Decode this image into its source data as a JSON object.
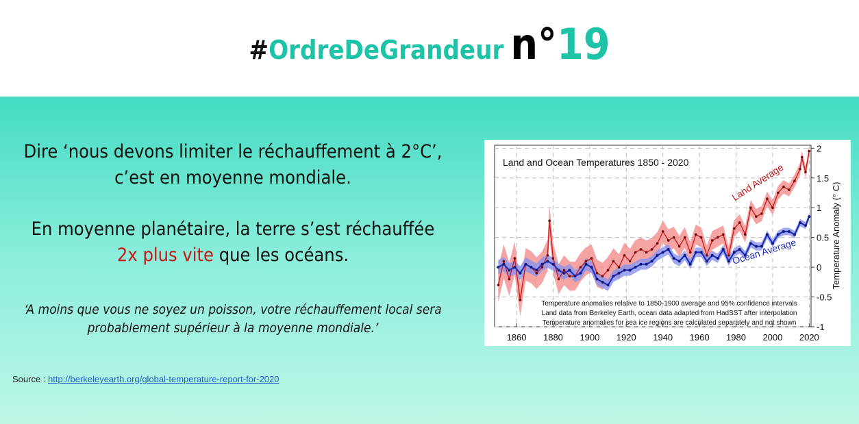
{
  "header": {
    "hash": "#",
    "tag": "OrdreDeGrandeur",
    "number_prefix": "n°",
    "number": "19"
  },
  "text": {
    "p1_line1": "Dire ‘nous devons limiter le réchauffement à 2°C’,",
    "p1_line2": "c’est en moyenne mondiale.",
    "p2_line1": "En moyenne planétaire, la terre s’est réchauffée",
    "p2_highlight": "2x plus vite",
    "p2_rest": " que les océans.",
    "quote_line1": "‘A moins que vous ne soyez un poisson, votre réchauffement local sera",
    "quote_line2": "probablement supérieur à la moyenne mondiale.’"
  },
  "source": {
    "label": "Source : ",
    "link": "http://berkeleyearth.org/global-temperature-report-for-2020"
  },
  "colors": {
    "accent": "#1cc3a6",
    "highlight_red": "#c41a16",
    "land": "#cc1f1f",
    "ocean": "#1f2fc0"
  },
  "chart_data": {
    "type": "line",
    "title": "Land and Ocean Temperatures 1850 - 2020",
    "xlabel": "",
    "ylabel": "Temperature Anomaly (° C)",
    "xlim": [
      1848,
      2021
    ],
    "ylim": [
      -1,
      2.05
    ],
    "xticks": [
      1860,
      1880,
      1900,
      1920,
      1940,
      1960,
      1980,
      2000,
      2020
    ],
    "yticks": [
      -1,
      -0.5,
      0,
      0.5,
      1,
      1.5,
      2
    ],
    "ytick_labels": [
      "-1",
      "-0.5",
      "0",
      "0.5",
      "1",
      "1.5",
      "2"
    ],
    "grid": true,
    "annotations": [
      "Temperature anomalies relative to 1850-1900 average and 95% confidence intervals",
      "Land data from Berkeley Earth, ocean data adapted from HadSST after interpolation",
      "Temperature anomalies for sea ice regions are calculated separately and not shown"
    ],
    "series": [
      {
        "name": "Land Average",
        "x": [
          1850,
          1853,
          1856,
          1859,
          1862,
          1865,
          1868,
          1871,
          1874,
          1877,
          1878,
          1880,
          1883,
          1886,
          1889,
          1892,
          1895,
          1898,
          1901,
          1904,
          1907,
          1910,
          1913,
          1916,
          1919,
          1922,
          1925,
          1928,
          1931,
          1934,
          1937,
          1940,
          1943,
          1946,
          1949,
          1952,
          1955,
          1958,
          1961,
          1964,
          1967,
          1970,
          1973,
          1976,
          1979,
          1982,
          1985,
          1988,
          1991,
          1994,
          1997,
          2000,
          2003,
          2006,
          2009,
          2012,
          2015,
          2016,
          2018,
          2020
        ],
        "values": [
          -0.3,
          0.1,
          -0.2,
          0.15,
          -0.55,
          0.05,
          0.0,
          -0.1,
          0.0,
          0.2,
          0.78,
          0.15,
          -0.2,
          -0.05,
          -0.15,
          -0.15,
          0.0,
          0.1,
          0.15,
          -0.1,
          -0.15,
          -0.05,
          0.1,
          0.0,
          0.2,
          0.1,
          0.25,
          0.3,
          0.25,
          0.3,
          0.4,
          0.6,
          0.45,
          0.5,
          0.35,
          0.5,
          0.25,
          0.55,
          0.5,
          0.2,
          0.45,
          0.5,
          0.55,
          0.2,
          0.65,
          0.75,
          0.55,
          1.0,
          0.85,
          0.9,
          1.15,
          1.0,
          1.25,
          1.35,
          1.3,
          1.45,
          1.65,
          1.85,
          1.6,
          1.95
        ]
      },
      {
        "name": "Ocean Average",
        "x": [
          1850,
          1853,
          1856,
          1859,
          1862,
          1865,
          1868,
          1871,
          1874,
          1877,
          1880,
          1883,
          1886,
          1889,
          1892,
          1895,
          1898,
          1901,
          1904,
          1907,
          1910,
          1913,
          1916,
          1919,
          1922,
          1925,
          1928,
          1931,
          1934,
          1937,
          1940,
          1943,
          1946,
          1949,
          1952,
          1955,
          1958,
          1961,
          1964,
          1967,
          1970,
          1973,
          1976,
          1979,
          1982,
          1985,
          1988,
          1991,
          1994,
          1997,
          2000,
          2003,
          2006,
          2009,
          2012,
          2015,
          2018,
          2020
        ],
        "values": [
          0.0,
          0.05,
          -0.05,
          0.0,
          -0.1,
          0.05,
          0.0,
          -0.05,
          0.05,
          0.1,
          0.05,
          -0.05,
          -0.1,
          -0.05,
          -0.15,
          -0.1,
          0.05,
          0.0,
          -0.2,
          -0.25,
          -0.3,
          -0.15,
          -0.1,
          -0.05,
          -0.05,
          0.0,
          0.05,
          0.05,
          0.1,
          0.2,
          0.25,
          0.3,
          0.15,
          0.1,
          0.2,
          0.05,
          0.25,
          0.25,
          0.1,
          0.2,
          0.15,
          0.3,
          0.1,
          0.25,
          0.3,
          0.2,
          0.4,
          0.35,
          0.35,
          0.55,
          0.4,
          0.55,
          0.6,
          0.6,
          0.55,
          0.75,
          0.7,
          0.85
        ]
      }
    ]
  }
}
